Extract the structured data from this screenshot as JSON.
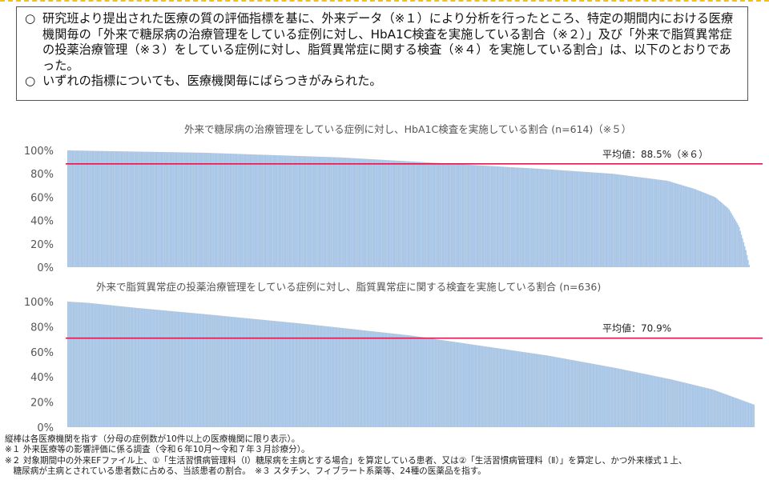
{
  "summary": {
    "bullet1_mark": "○",
    "bullet1_text": "研究班より提出された医療の質の評価指標を基に、外来データ（※１）により分析を行ったところ、特定の期間内における医療機関毎の「外来で糖尿病の治療管理をしている症例に対し、HbA1C検査を実施している割合（※２）」及び「外来で脂質異常症の投薬治療管理（※３）をしている症例に対し、脂質異常症に関する検査（※４）を実施している割合」は、以下のとおりであった。",
    "bullet2_mark": "○",
    "bullet2_text": "いずれの指標についても、医療機関毎にばらつきがみられた。"
  },
  "chart_data": [
    {
      "type": "bar",
      "title": "外来で糖尿病の治療管理をしている症例に対し、HbA1C検査を実施している割合 (n=614)（※５）",
      "n": 614,
      "ylim": [
        0,
        100
      ],
      "y_ticks": [
        "0%",
        "20%",
        "40%",
        "60%",
        "80%",
        "100%"
      ],
      "sorted": "descending",
      "profile": [
        [
          0,
          100
        ],
        [
          0.05,
          99.5
        ],
        [
          0.2,
          98
        ],
        [
          0.4,
          94
        ],
        [
          0.55,
          89
        ],
        [
          0.7,
          84
        ],
        [
          0.8,
          80
        ],
        [
          0.88,
          74
        ],
        [
          0.92,
          67
        ],
        [
          0.95,
          60
        ],
        [
          0.97,
          50
        ],
        [
          0.985,
          35
        ],
        [
          0.995,
          15
        ],
        [
          1,
          2
        ]
      ],
      "average": 88.5,
      "average_label": "平均値：88.5%（※６）",
      "bar_color": "#a9c6e6",
      "average_color": "#d81b50"
    },
    {
      "type": "bar",
      "title": "外来で脂質異常症の投薬治療管理をしている症例に対し、脂質異常症に関する検査を実施している割合 (n=636)",
      "n": 636,
      "ylim": [
        0,
        100
      ],
      "y_ticks": [
        "0%",
        "20%",
        "40%",
        "60%",
        "80%",
        "100%"
      ],
      "sorted": "descending",
      "profile": [
        [
          0,
          100
        ],
        [
          0.03,
          99
        ],
        [
          0.1,
          95
        ],
        [
          0.2,
          90
        ],
        [
          0.35,
          82
        ],
        [
          0.5,
          73
        ],
        [
          0.6,
          65
        ],
        [
          0.7,
          57
        ],
        [
          0.8,
          47
        ],
        [
          0.88,
          38
        ],
        [
          0.94,
          30
        ],
        [
          0.98,
          22
        ],
        [
          1,
          18
        ]
      ],
      "average": 70.9,
      "average_label": "平均値：70.9%",
      "bar_color": "#a9c6e6",
      "average_color": "#d81b50"
    }
  ],
  "footnotes": [
    "縦棒は各医療機関を指す（分母の症例数が10件以上の医療機関に限り表示）。",
    "※１ 外来医療等の影響評価に係る調査（令和６年10月～令和７年３月診療分）。",
    "※２ 対象期間中の外来EFファイル上、①「生活習慣病管理料（Ⅰ）糖尿病を主病とする場合」を算定している患者、又は②「生活習慣病管理料（Ⅱ）」を算定し、かつ外来様式１上、",
    "　糖尿病が主病とされている患者数に占める、当該患者の割合。　※３ スタチン、フィブラート系薬等、24種の医薬品を指す。"
  ]
}
